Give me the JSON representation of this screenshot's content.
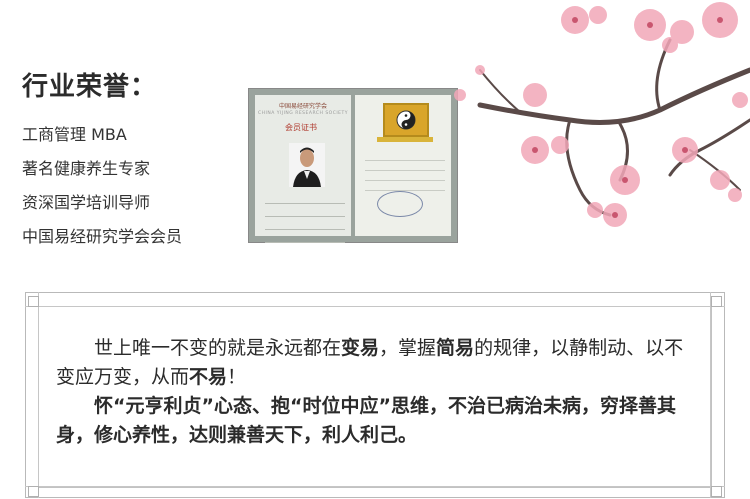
{
  "header": {
    "title": "行业荣誉",
    "colon": "："
  },
  "honors": [
    "工商管理 MBA",
    "著名健康养生专家",
    "资深国学培训导师",
    "中国易经研究学会会员"
  ],
  "certificate": {
    "org_name": "中国易经研究学会",
    "org_name_en": "CHINA YIJING RESEARCH SOCIETY",
    "card_title": "会员证书"
  },
  "quote": {
    "line1_a": "世上唯一不变的就是永远都在",
    "line1_b": "变易",
    "line1_c": "，掌握",
    "line1_d": "简易",
    "line1_e": "的规律，以静制动、以不变应万变，从而",
    "line1_f": "不易",
    "line1_g": "！",
    "line2": "怀“元亨利贞”心态、抱“时位中应”思维，不治已病治未病，穷择善其身，修心养性，达则兼善天下，利人利己。"
  },
  "colors": {
    "blossom_pink": "#f2a7b8",
    "branch": "#5a4a48",
    "frame": "#b9b9b9"
  }
}
